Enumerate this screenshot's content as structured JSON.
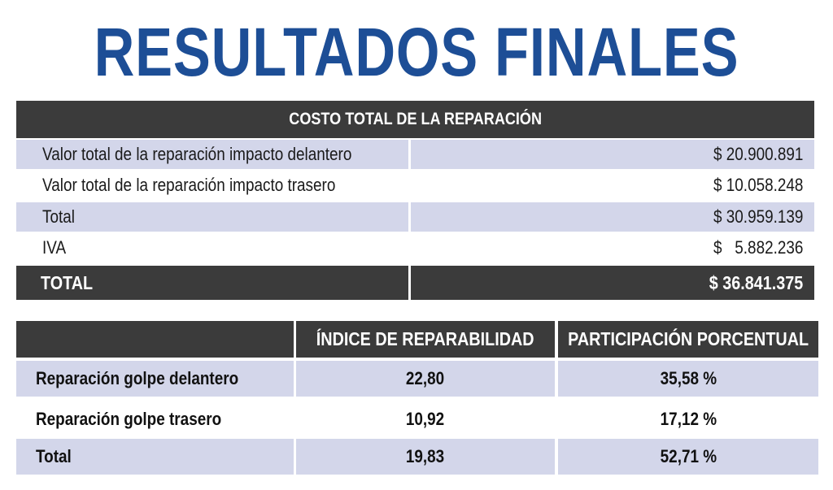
{
  "title": "RESULTADOS FINALES",
  "cost_table": {
    "header": "COSTO TOTAL DE LA REPARACIÓN",
    "rows": [
      {
        "label": "Valor total de la reparación impacto delantero",
        "value": "$ 20.900.891"
      },
      {
        "label": "Valor total de la reparación impacto trasero",
        "value": "$ 10.058.248"
      },
      {
        "label": "Total",
        "value": "$ 30.959.139"
      },
      {
        "label": "IVA",
        "value": "$   5.882.236"
      }
    ],
    "total": {
      "label": "TOTAL",
      "value": "$ 36.841.375"
    }
  },
  "index_table": {
    "headers": [
      "",
      "ÍNDICE DE REPARABILIDAD",
      "PARTICIPACIÓN PORCENTUAL"
    ],
    "rows": [
      {
        "label": "Reparación golpe delantero",
        "indice": "22,80",
        "participacion": "35,58 %"
      },
      {
        "label": "Reparación golpe trasero",
        "indice": "10,92",
        "participacion": "17,12 %"
      },
      {
        "label": "Total",
        "indice": "19,83",
        "participacion": "52,71 %"
      }
    ]
  },
  "colors": {
    "title": "#1d4e96",
    "header_bg": "#3b3b3b",
    "shade": "#d3d6ea"
  }
}
